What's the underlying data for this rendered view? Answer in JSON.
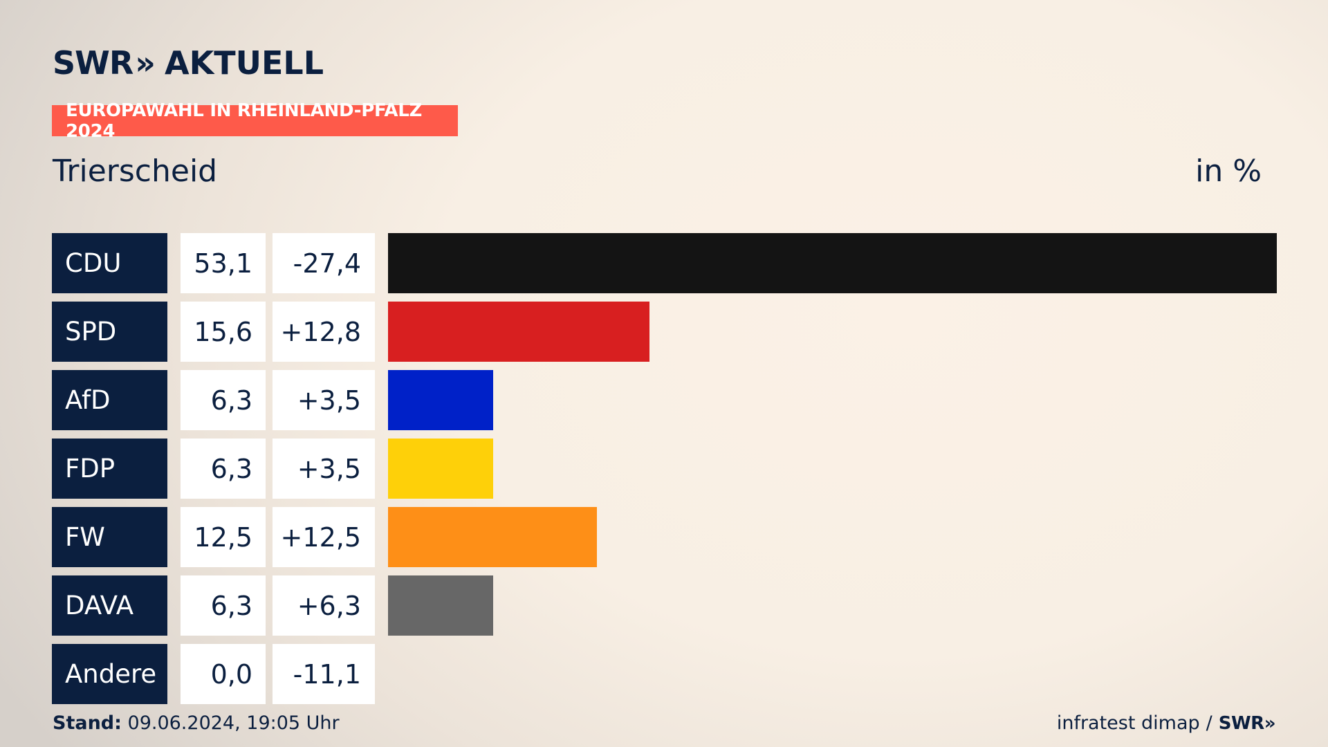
{
  "header": {
    "logo_brand": "SWR",
    "logo_chevrons": "»",
    "logo_title": "AKTUELL",
    "tag": "EUROPAWAHL IN RHEINLAND-PFALZ 2024",
    "region": "Trierscheid",
    "unit": "in %"
  },
  "chart_data": {
    "type": "bar",
    "orientation": "horizontal",
    "categories": [
      "CDU",
      "SPD",
      "AfD",
      "FDP",
      "FW",
      "DAVA",
      "Andere"
    ],
    "values": [
      53.1,
      15.6,
      6.3,
      6.3,
      12.5,
      6.3,
      0.0
    ],
    "value_labels": [
      "53,1",
      "15,6",
      "6,3",
      "6,3",
      "12,5",
      "6,3",
      "0,0"
    ],
    "changes": [
      -27.4,
      12.8,
      3.5,
      3.5,
      12.5,
      6.3,
      -11.1
    ],
    "change_labels": [
      "-27,4",
      "+12,8",
      "+3,5",
      "+3,5",
      "+12,5",
      "+6,3",
      "-11,1"
    ],
    "colors": [
      "#141414",
      "#d81f20",
      "#0021c8",
      "#fed009",
      "#fe8f17",
      "#676767",
      "#cccccc"
    ],
    "xlim": [
      0,
      53.1
    ],
    "grid": false
  },
  "footer": {
    "stand_label": "Stand:",
    "stand_value": "09.06.2024, 19:05 Uhr",
    "source": "infratest dimap",
    "separator": "/",
    "source_brand": "SWR»"
  }
}
